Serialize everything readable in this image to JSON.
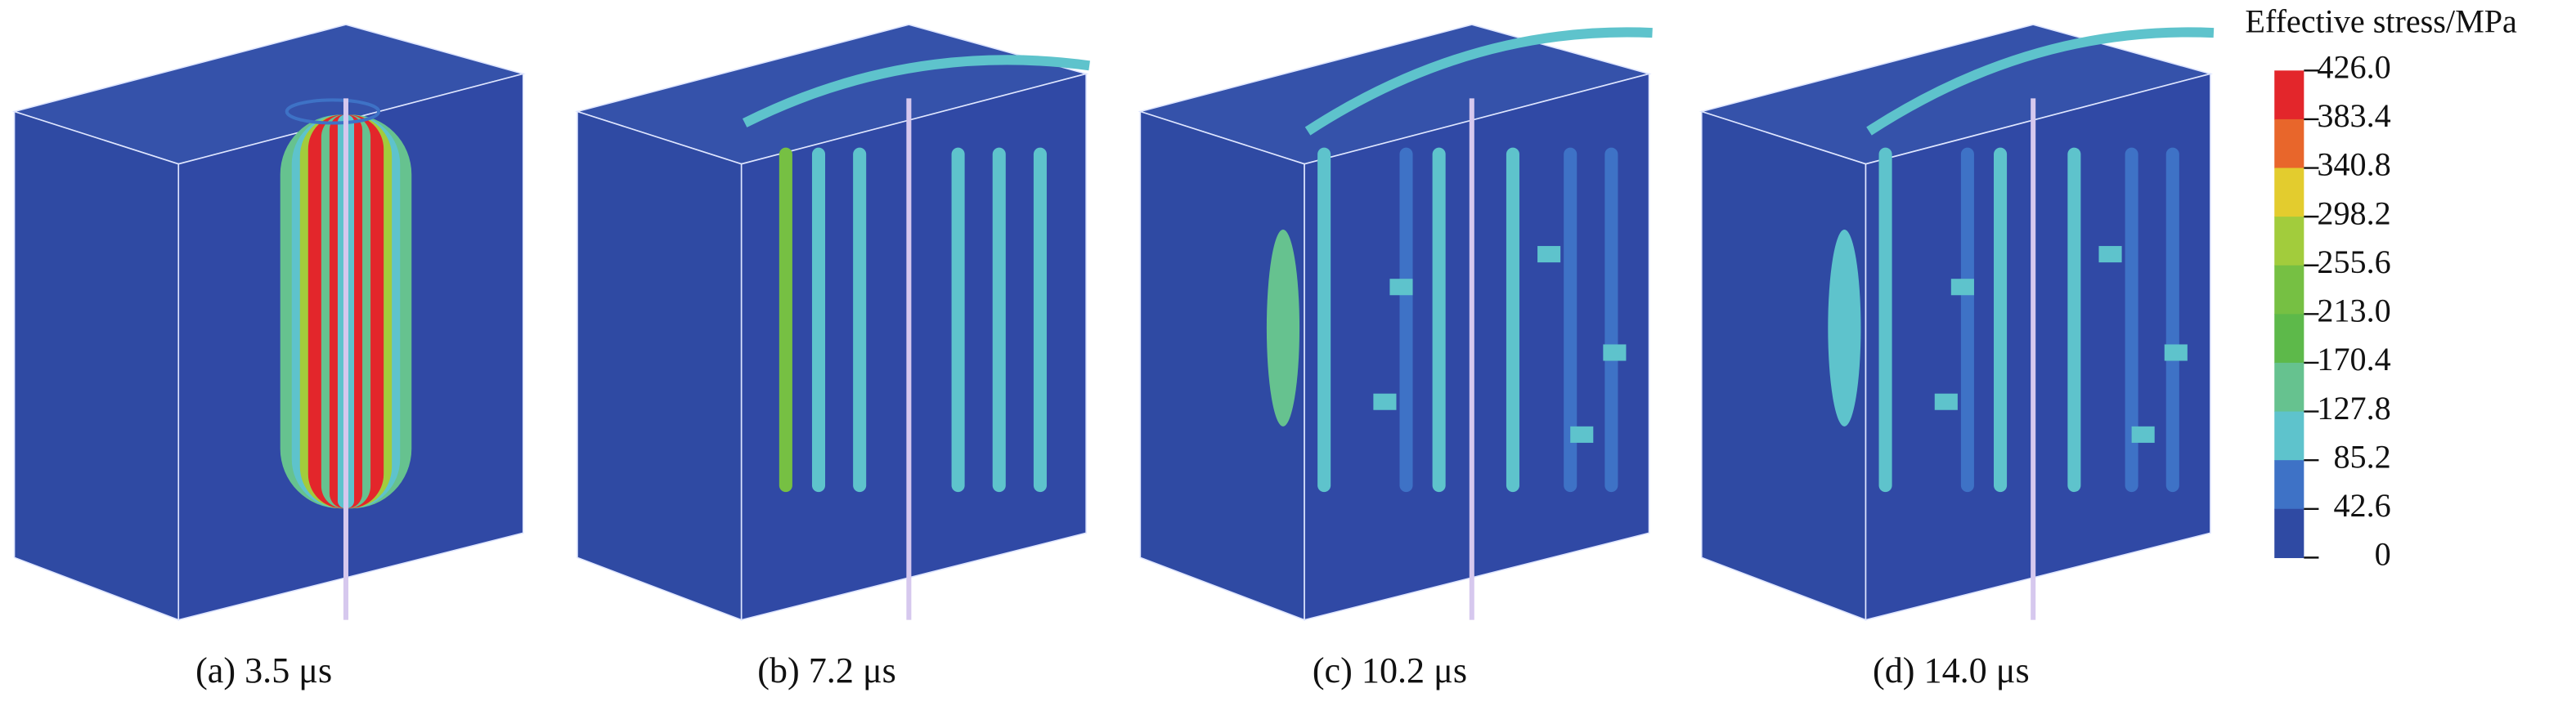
{
  "panels": [
    {
      "caption": "(a) 3.5 μs"
    },
    {
      "caption": "(b) 7.2 μs"
    },
    {
      "caption": "(c) 10.2 μs"
    },
    {
      "caption": "(d) 14.0 μs"
    }
  ],
  "colorbar": {
    "title": "Effective stress/MPa",
    "labels": [
      "426.0",
      "383.4",
      "340.8",
      "298.2",
      "255.6",
      "213.0",
      "170.4",
      "127.8",
      "85.2",
      "42.6",
      "0"
    ],
    "colors": [
      "#e3262b",
      "#e8662b",
      "#e3cc2e",
      "#a2cc3c",
      "#76c043",
      "#5db94a",
      "#66c28f",
      "#5ec3cc",
      "#3e72c6",
      "#2f4aa3"
    ]
  }
}
